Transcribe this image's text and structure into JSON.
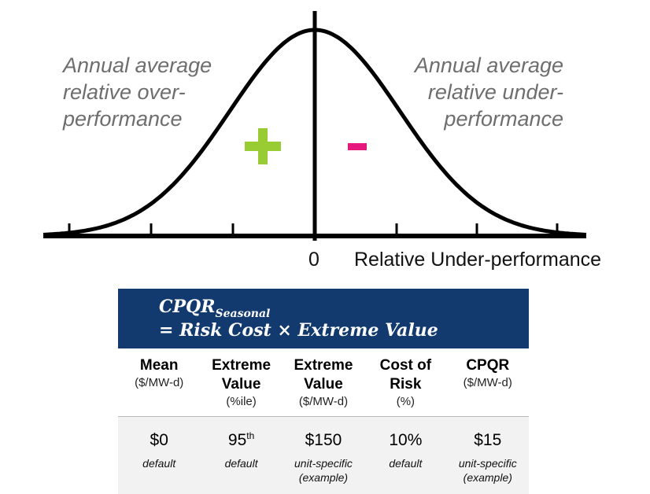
{
  "diagram": {
    "left_note": [
      "Annual average",
      "relative over-",
      "performance"
    ],
    "right_note": [
      "Annual average",
      "relative under-",
      "performance"
    ],
    "plus_sign": "+",
    "minus_sign": "-",
    "zero_label": "0",
    "axis_label": "Relative Under-performance",
    "colors": {
      "plus": "#99cc33",
      "minus": "#e6177f",
      "curve": "#000000"
    }
  },
  "formula": {
    "line1_main": "CPQR",
    "line1_sub": "Seasonal",
    "line2": "= Risk Cost × Extreme Value",
    "colors": {
      "background": "#123a6e",
      "text": "#ffffff"
    }
  },
  "table": {
    "columns": [
      {
        "title": "Mean",
        "unit": "($/MW-d)"
      },
      {
        "title": "Extreme Value",
        "unit": "(%ile)"
      },
      {
        "title": "Extreme Value",
        "unit": "($/MW-d)"
      },
      {
        "title": "Cost of Risk",
        "unit": "(%)"
      },
      {
        "title": "CPQR",
        "unit": "($/MW-d)"
      }
    ],
    "values": [
      {
        "value": "$0",
        "sup": "",
        "note": "default"
      },
      {
        "value": "95",
        "sup": "th",
        "note": "default"
      },
      {
        "value": "$150",
        "sup": "",
        "note": "unit-specific (example)"
      },
      {
        "value": "10%",
        "sup": "",
        "note": "default"
      },
      {
        "value": "$15",
        "sup": "",
        "note": "unit-specific (example)"
      }
    ]
  }
}
